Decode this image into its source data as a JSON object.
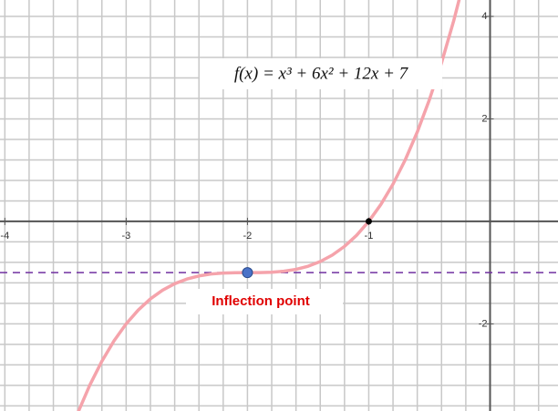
{
  "chart_data": {
    "type": "function",
    "annotations": {
      "formula": "f(x) = x³ + 6x² + 12x + 7",
      "inflection": "Inflection point"
    },
    "x": [
      -3.4,
      -3.3,
      -3.2,
      -3.1,
      -3.0,
      -2.9,
      -2.8,
      -2.7,
      -2.6,
      -2.5,
      -2.4,
      -2.3,
      -2.2,
      -2.1,
      -2.0,
      -1.9,
      -1.8,
      -1.7,
      -1.6,
      -1.5,
      -1.4,
      -1.3,
      -1.2,
      -1.1,
      -1.0,
      -0.9,
      -0.8,
      -0.7,
      -0.6,
      -0.5,
      -0.4,
      -0.3,
      -0.2
    ],
    "series": [
      {
        "color": "#f5a3ab",
        "values": [
          -3.744,
          -3.197,
          -2.728,
          -2.331,
          -2,
          -1.729,
          -1.512,
          -1.343,
          -1.216,
          -1.125,
          -1.064,
          -1.027,
          -1.008,
          -1.001,
          -1,
          -0.999,
          -0.992,
          -0.973,
          -0.936,
          -0.875,
          -0.784,
          -0.657,
          -0.488,
          -0.271,
          0,
          0.331,
          0.728,
          1.197,
          1.744,
          2.375,
          3.096,
          3.913,
          4.832
        ]
      }
    ],
    "points": [
      {
        "x": -2,
        "y": -1,
        "color": "#4a72c8"
      },
      {
        "x": -1,
        "y": 0,
        "color": "#000000"
      }
    ],
    "hline": {
      "y": -1,
      "color": "#7030a0"
    },
    "xlim": [
      -4.04,
      0.56
    ],
    "ylim": [
      -3.7,
      4.32
    ],
    "xticks": [
      -4,
      -3,
      -2,
      -1
    ],
    "yticks": [
      -2,
      2,
      4
    ],
    "xgrid": [
      -4,
      -3.8,
      -3.6,
      -3.4,
      -3.2,
      -3,
      -2.8,
      -2.6,
      -2.4,
      -2.2,
      -2,
      -1.8,
      -1.6,
      -1.4,
      -1.2,
      -1,
      -0.8,
      -0.6,
      -0.4,
      -0.2,
      0,
      0.2,
      0.4
    ],
    "ygrid": [
      -3.6,
      -3.2,
      -2.8,
      -2.4,
      -2,
      -1.6,
      -1.2,
      -0.8,
      -0.4,
      0,
      0.4,
      0.8,
      1.2,
      1.6,
      2,
      2.4,
      2.8,
      3.2,
      3.6,
      4
    ],
    "grid": true
  }
}
